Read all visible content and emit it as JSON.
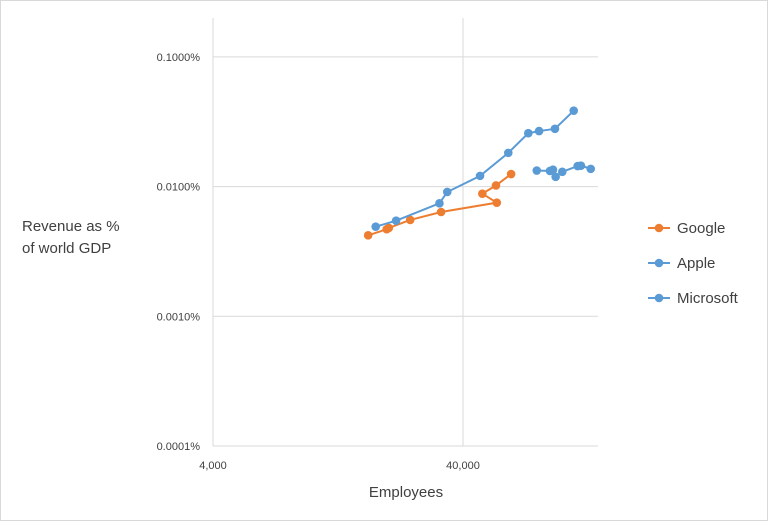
{
  "chart_data": {
    "type": "scatter",
    "title": "",
    "xlabel": "Employees",
    "ylabel_lines": [
      "Revenue as %",
      "of world GDP"
    ],
    "xscale": "log",
    "yscale": "log",
    "xlim": [
      4000,
      150000
    ],
    "ylim": [
      0.0001,
      0.1
    ],
    "x_ticks": [
      {
        "value": 4000,
        "label": "4,000"
      },
      {
        "value": 40000,
        "label": "40,000"
      }
    ],
    "y_ticks": [
      {
        "value": 0.1,
        "label": "0.1000%"
      },
      {
        "value": 0.01,
        "label": "0.0100%"
      },
      {
        "value": 0.001,
        "label": "0.0010%"
      },
      {
        "value": 0.0001,
        "label": "0.0001%"
      }
    ],
    "grid": true,
    "legend_position": "right",
    "series": [
      {
        "name": "Google",
        "color": "#ED7D31",
        "x": [
          16700,
          19800,
          20200,
          24600,
          32700,
          54600,
          47800,
          54200,
          62300
        ],
        "y": [
          0.00421,
          0.00469,
          0.0048,
          0.00553,
          0.00637,
          0.00752,
          0.00882,
          0.0102,
          0.0125
        ]
      },
      {
        "name": "Apple",
        "color": "#5B9BD5",
        "x": [
          17900,
          21600,
          32200,
          34600,
          46800,
          60700,
          73000,
          80600,
          93300,
          110900
        ],
        "y": [
          0.00491,
          0.00546,
          0.00743,
          0.00909,
          0.0121,
          0.0182,
          0.0258,
          0.0268,
          0.0279,
          0.0385
        ]
      },
      {
        "name": "Microsoft",
        "color": "#5B9BD5",
        "x": [
          78900,
          89100,
          91600,
          93900,
          99800,
          115000,
          118500,
          129700
        ],
        "y": [
          0.0133,
          0.0132,
          0.0135,
          0.0119,
          0.013,
          0.0144,
          0.0145,
          0.0137
        ]
      }
    ]
  }
}
